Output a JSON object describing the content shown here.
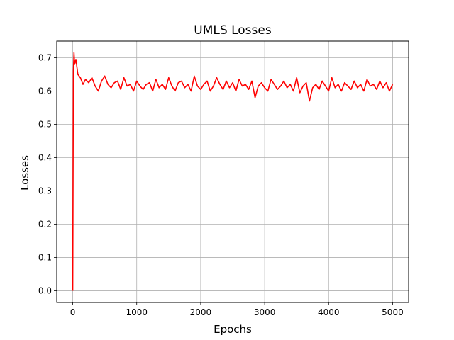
{
  "chart_data": {
    "type": "line",
    "title": "UMLS Losses",
    "xlabel": "Epochs",
    "ylabel": "Losses",
    "xlim": [
      -250,
      5250
    ],
    "ylim": [
      -0.035,
      0.75
    ],
    "grid": true,
    "line_color": "#ff0000",
    "xticks": [
      0,
      1000,
      2000,
      3000,
      4000,
      5000
    ],
    "yticks": [
      0.0,
      0.1,
      0.2,
      0.3,
      0.4,
      0.5,
      0.6,
      0.7
    ],
    "xtick_labels": [
      "0",
      "1000",
      "2000",
      "3000",
      "4000",
      "5000"
    ],
    "ytick_labels": [
      "0.0",
      "0.1",
      "0.2",
      "0.3",
      "0.4",
      "0.5",
      "0.6",
      "0.7"
    ],
    "series": [
      {
        "x": [
          0,
          10,
          20,
          30,
          50,
          80,
          120,
          160,
          200,
          250,
          300,
          350,
          400,
          450,
          500,
          550,
          600,
          650,
          700,
          750,
          800,
          850,
          900,
          950,
          1000,
          1050,
          1100,
          1150,
          1200,
          1250,
          1300,
          1350,
          1400,
          1450,
          1500,
          1550,
          1600,
          1650,
          1700,
          1750,
          1800,
          1850,
          1900,
          1950,
          2000,
          2050,
          2100,
          2150,
          2200,
          2250,
          2300,
          2350,
          2400,
          2450,
          2500,
          2550,
          2600,
          2650,
          2700,
          2750,
          2800,
          2850,
          2900,
          2950,
          3000,
          3050,
          3100,
          3150,
          3200,
          3250,
          3300,
          3350,
          3400,
          3450,
          3500,
          3550,
          3600,
          3650,
          3700,
          3750,
          3800,
          3850,
          3900,
          3950,
          4000,
          4050,
          4100,
          4150,
          4200,
          4250,
          4300,
          4350,
          4400,
          4450,
          4500,
          4550,
          4600,
          4650,
          4700,
          4750,
          4800,
          4850,
          4900,
          4950,
          5000
        ],
        "y": [
          0.0,
          0.66,
          0.715,
          0.68,
          0.695,
          0.65,
          0.64,
          0.62,
          0.635,
          0.625,
          0.64,
          0.615,
          0.6,
          0.63,
          0.645,
          0.62,
          0.61,
          0.625,
          0.63,
          0.605,
          0.64,
          0.615,
          0.62,
          0.6,
          0.63,
          0.615,
          0.605,
          0.62,
          0.625,
          0.6,
          0.635,
          0.61,
          0.62,
          0.605,
          0.64,
          0.615,
          0.6,
          0.625,
          0.63,
          0.61,
          0.62,
          0.6,
          0.645,
          0.615,
          0.605,
          0.62,
          0.63,
          0.6,
          0.615,
          0.64,
          0.62,
          0.605,
          0.63,
          0.61,
          0.625,
          0.6,
          0.635,
          0.615,
          0.62,
          0.605,
          0.63,
          0.58,
          0.615,
          0.625,
          0.61,
          0.6,
          0.635,
          0.62,
          0.605,
          0.615,
          0.63,
          0.61,
          0.62,
          0.6,
          0.64,
          0.595,
          0.615,
          0.625,
          0.57,
          0.61,
          0.62,
          0.605,
          0.63,
          0.615,
          0.6,
          0.64,
          0.61,
          0.62,
          0.6,
          0.625,
          0.615,
          0.605,
          0.63,
          0.61,
          0.62,
          0.6,
          0.635,
          0.615,
          0.62,
          0.605,
          0.63,
          0.61,
          0.625,
          0.6,
          0.62
        ]
      }
    ]
  }
}
